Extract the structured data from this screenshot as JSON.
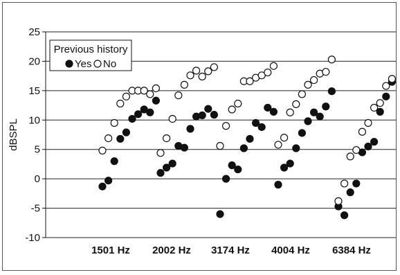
{
  "chart_data": {
    "type": "scatter",
    "title": "",
    "xlabel": "",
    "ylabel": "dBSPL",
    "ylim": [
      -10,
      25
    ],
    "yticks": [
      25,
      20,
      15,
      10,
      5,
      0,
      -5,
      -10
    ],
    "grid": "horizontal",
    "x_categories": [
      "1501 Hz",
      "2002 Hz",
      "3174 Hz",
      "4004 Hz",
      "6384 Hz"
    ],
    "legend": {
      "title": "Previous history",
      "placement": "top-left",
      "entries": [
        {
          "name": "Yes",
          "marker": "filled-circle"
        },
        {
          "name": "No",
          "marker": "open-circle"
        }
      ]
    },
    "series": [
      {
        "name": "Yes",
        "marker": "filled",
        "groups": [
          [
            -1.3,
            -0.3,
            3.0,
            6.8,
            7.9,
            10.2,
            11.0,
            11.8,
            11.3,
            13.3
          ],
          [
            1.0,
            1.9,
            2.6,
            5.6,
            5.3,
            8.5,
            10.6,
            10.8,
            11.9,
            10.9
          ],
          [
            -6.0,
            0.0,
            2.3,
            1.6,
            5.2,
            6.8,
            9.5,
            8.8,
            12.1,
            11.4
          ],
          [
            -1.0,
            1.9,
            2.6,
            5.2,
            7.8,
            9.8,
            11.3,
            10.6,
            12.3,
            14.9
          ],
          [
            -4.7,
            -6.2,
            -2.3,
            -0.8,
            4.5,
            5.5,
            6.3,
            11.4,
            14.0,
            16.5
          ]
        ]
      },
      {
        "name": "No",
        "marker": "open",
        "groups": [
          [
            4.8,
            6.9,
            9.5,
            12.8,
            14.0,
            15.0,
            15.0,
            15.0,
            14.4,
            15.4
          ],
          [
            4.4,
            6.9,
            10.2,
            14.2,
            16.0,
            17.6,
            18.4,
            17.4,
            18.3,
            19.0
          ],
          [
            5.6,
            9.0,
            11.8,
            12.8,
            16.6,
            16.6,
            17.2,
            17.6,
            18.1,
            19.2
          ],
          [
            5.8,
            7.0,
            11.3,
            12.7,
            14.4,
            16.0,
            16.8,
            17.9,
            18.2,
            20.3
          ],
          [
            -3.8,
            -0.8,
            3.8,
            4.9,
            8.0,
            9.5,
            12.1,
            12.9,
            15.8,
            17.0
          ]
        ]
      }
    ]
  },
  "colors": {
    "filled": "#111111",
    "open_stroke": "#111111",
    "open_fill": "#ffffff",
    "grid": "#222222",
    "axis": "#111111"
  }
}
